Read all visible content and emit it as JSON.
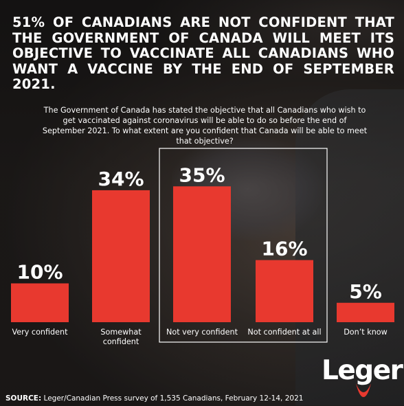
{
  "headline": "51% OF CANADIANS ARE NOT CONFIDENT THAT THE GOVERNMENT OF CANADA WILL MEET ITS OBJECTIVE TO VACCINATE ALL CANADIANS WHO WANT A VACCINE BY THE END OF SEPTEMBER 2021.",
  "question": "The Government of Canada has stated the objective that all Canadians who wish to get vaccinated against coronavirus will be able to do so before the end of September 2021. To what extent are you confident that Canada will be able to meet that objective?",
  "source_label": "SOURCE:",
  "source_text": " Leger/Canadian Press survey of 1,535 Canadians, February 12-14, 2021",
  "logo_text": "Leger",
  "colors": {
    "bar": "#e8392f",
    "text": "#ffffff",
    "highlight_box": "#ffffff"
  },
  "chart_data": {
    "type": "bar",
    "categories": [
      "Very confident",
      "Somewhat confident",
      "Not very confident",
      "Not confident at all",
      "Don’t know"
    ],
    "category_lines": [
      [
        "Very confident"
      ],
      [
        "Somewhat",
        "confident"
      ],
      [
        "Not very confident"
      ],
      [
        "Not confident at all"
      ],
      [
        "Don’t know"
      ]
    ],
    "values": [
      10,
      34,
      35,
      16,
      5
    ],
    "value_labels": [
      "10%",
      "34%",
      "35%",
      "16%",
      "5%"
    ],
    "unit": "%",
    "highlighted_categories": [
      "Not very confident",
      "Not confident at all"
    ]
  }
}
